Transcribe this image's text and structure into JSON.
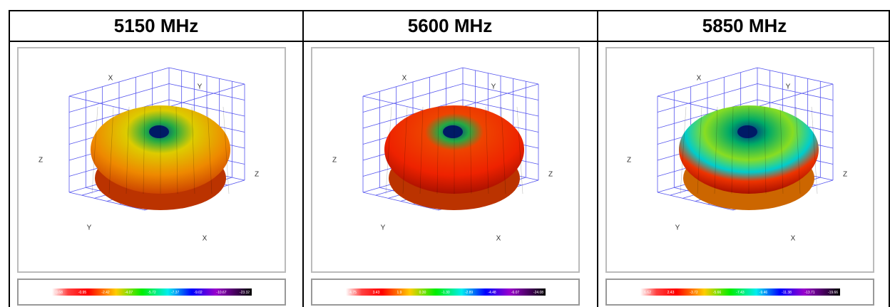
{
  "table": {
    "headers": [
      "5150 MHz",
      "5600 MHz",
      "5850 MHz"
    ]
  },
  "panels": [
    {
      "axis_labels": [
        "X",
        "Y",
        "Z",
        "Z",
        "Y",
        "X"
      ],
      "colorbar_labels": [
        "0.68",
        "-0.95",
        "-2.42",
        "-4.07",
        "-5.72",
        "-7.37",
        "-9.02",
        "-10.67",
        "-23.32"
      ]
    },
    {
      "axis_labels": [
        "X",
        "Y",
        "Z",
        "Z",
        "Y",
        "X"
      ],
      "colorbar_labels": [
        "4.75",
        "3.43",
        "1.9",
        "0.30",
        "-1.30",
        "-2.89",
        "-4.48",
        "-6.07",
        "-24.08"
      ]
    },
    {
      "axis_labels": [
        "X",
        "Y",
        "Z",
        "Z",
        "Y",
        "X"
      ],
      "colorbar_labels": [
        "6.62",
        "2.43",
        "-3.72",
        "-5.66",
        "-7.43",
        "-9.46",
        "-11.38",
        "-13.71",
        "-19.66"
      ]
    }
  ]
}
